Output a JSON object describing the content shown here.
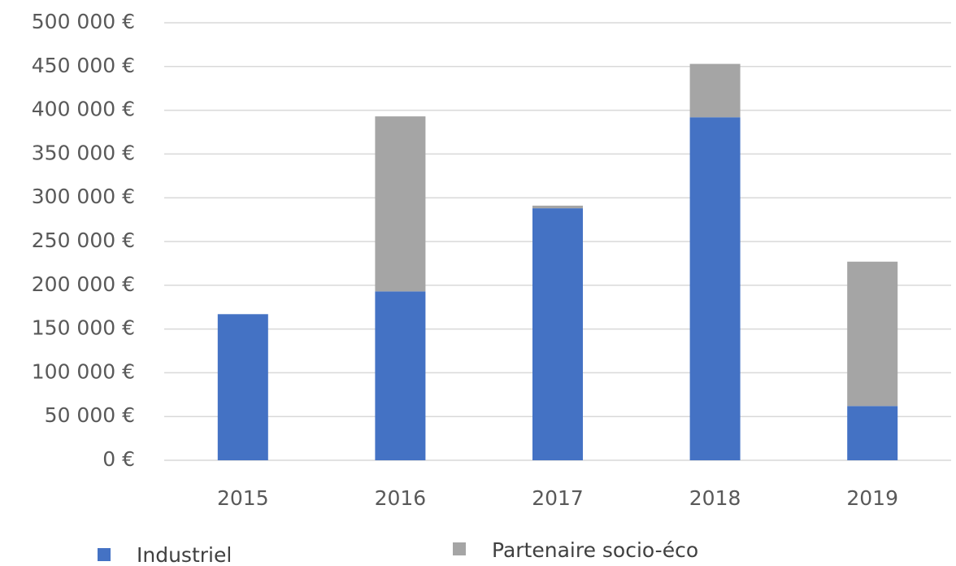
{
  "chart_data": {
    "type": "bar",
    "stacked": true,
    "categories": [
      "2015",
      "2016",
      "2017",
      "2018",
      "2019"
    ],
    "series": [
      {
        "name": "Industriel",
        "color": "#4472c4",
        "values": [
          167000,
          193000,
          288000,
          392000,
          62000
        ]
      },
      {
        "name": "Partenaire socio-éco",
        "color": "#a5a5a5",
        "values": [
          0,
          200000,
          3000,
          61000,
          165000
        ]
      }
    ],
    "ylim": [
      0,
      500000
    ],
    "yticks": [
      {
        "value": 0,
        "label": "0 €"
      },
      {
        "value": 50000,
        "label": "50 000 €"
      },
      {
        "value": 100000,
        "label": "100 000 €"
      },
      {
        "value": 150000,
        "label": "150 000 €"
      },
      {
        "value": 200000,
        "label": "200 000 €"
      },
      {
        "value": 250000,
        "label": "250 000 €"
      },
      {
        "value": 300000,
        "label": "300 000 €"
      },
      {
        "value": 350000,
        "label": "350 000 €"
      },
      {
        "value": 400000,
        "label": "400 000 €"
      },
      {
        "value": 450000,
        "label": "450 000 €"
      },
      {
        "value": 500000,
        "label": "500 000 €"
      }
    ],
    "grid": true,
    "legend": "bottom"
  }
}
